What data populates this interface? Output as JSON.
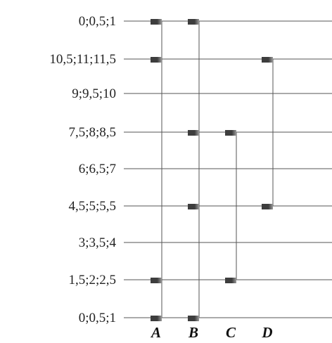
{
  "row_labels": [
    "0;0,5;1",
    "10,5;11;11,5",
    "9;9,5;10",
    "7,5;8;8,5",
    "6;6,5;7",
    "4,5;5;5,5",
    "3;3,5;4",
    "1,5;2;2,5",
    "0;0,5;1"
  ],
  "columns": [
    {
      "label": "A",
      "rows": [
        0,
        1,
        7,
        8
      ]
    },
    {
      "label": "B",
      "rows": [
        0,
        3,
        5,
        8
      ]
    },
    {
      "label": "C",
      "rows": [
        3,
        7
      ]
    },
    {
      "label": "D",
      "rows": [
        1,
        5
      ]
    }
  ],
  "colors": {
    "line": "#555555",
    "marker_dark": "#3d3d3d",
    "marker_light": "#9a9a9a",
    "text": "#222222"
  }
}
